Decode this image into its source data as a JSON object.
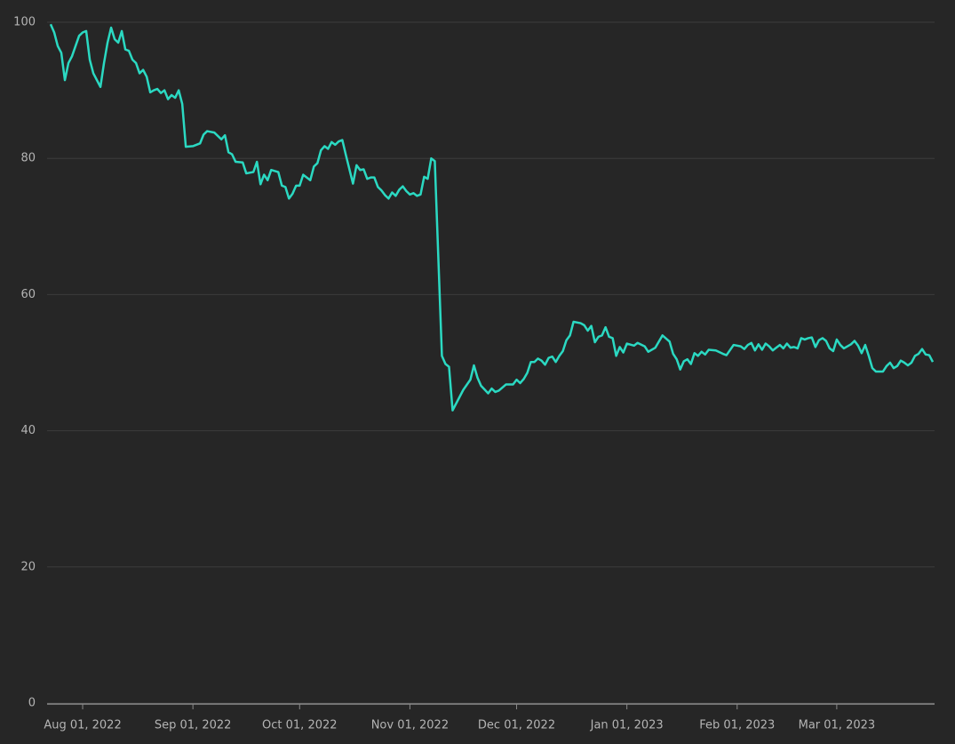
{
  "chart_data": {
    "type": "line",
    "x": [
      "2022-07-23",
      "2022-07-24",
      "2022-07-25",
      "2022-07-26",
      "2022-07-27",
      "2022-07-28",
      "2022-07-29",
      "2022-07-31",
      "2022-08-01",
      "2022-08-02",
      "2022-08-03",
      "2022-08-04",
      "2022-08-05",
      "2022-08-06",
      "2022-08-07",
      "2022-08-08",
      "2022-08-09",
      "2022-08-10",
      "2022-08-11",
      "2022-08-12",
      "2022-08-13",
      "2022-08-14",
      "2022-08-15",
      "2022-08-16",
      "2022-08-17",
      "2022-08-18",
      "2022-08-19",
      "2022-08-20",
      "2022-08-21",
      "2022-08-22",
      "2022-08-23",
      "2022-08-24",
      "2022-08-25",
      "2022-08-26",
      "2022-08-27",
      "2022-08-28",
      "2022-08-29",
      "2022-08-30",
      "2022-09-01",
      "2022-09-03",
      "2022-09-04",
      "2022-09-05",
      "2022-09-07",
      "2022-09-09",
      "2022-09-10",
      "2022-09-11",
      "2022-09-12",
      "2022-09-13",
      "2022-09-15",
      "2022-09-16",
      "2022-09-18",
      "2022-09-19",
      "2022-09-20",
      "2022-09-21",
      "2022-09-22",
      "2022-09-23",
      "2022-09-25",
      "2022-09-26",
      "2022-09-27",
      "2022-09-28",
      "2022-09-29",
      "2022-09-30",
      "2022-10-01",
      "2022-10-02",
      "2022-10-04",
      "2022-10-05",
      "2022-10-06",
      "2022-10-07",
      "2022-10-08",
      "2022-10-09",
      "2022-10-10",
      "2022-10-11",
      "2022-10-12",
      "2022-10-13",
      "2022-10-14",
      "2022-10-16",
      "2022-10-17",
      "2022-10-18",
      "2022-10-19",
      "2022-10-20",
      "2022-10-21",
      "2022-10-22",
      "2022-10-23",
      "2022-10-24",
      "2022-10-25",
      "2022-10-26",
      "2022-10-27",
      "2022-10-28",
      "2022-10-29",
      "2022-10-30",
      "2022-10-31",
      "2022-11-01",
      "2022-11-02",
      "2022-11-03",
      "2022-11-04",
      "2022-11-05",
      "2022-11-06",
      "2022-11-07",
      "2022-11-08",
      "2022-11-10",
      "2022-11-11",
      "2022-11-12",
      "2022-11-13",
      "2022-11-16",
      "2022-11-18",
      "2022-11-19",
      "2022-11-20",
      "2022-11-21",
      "2022-11-23",
      "2022-11-24",
      "2022-11-25",
      "2022-11-26",
      "2022-11-28",
      "2022-11-30",
      "2022-12-01",
      "2022-12-02",
      "2022-12-03",
      "2022-12-04",
      "2022-12-05",
      "2022-12-06",
      "2022-12-07",
      "2022-12-08",
      "2022-12-09",
      "2022-12-10",
      "2022-12-11",
      "2022-12-12",
      "2022-12-13",
      "2022-12-14",
      "2022-12-15",
      "2022-12-16",
      "2022-12-17",
      "2022-12-19",
      "2022-12-20",
      "2022-12-21",
      "2022-12-22",
      "2022-12-23",
      "2022-12-24",
      "2022-12-25",
      "2022-12-26",
      "2022-12-27",
      "2022-12-28",
      "2022-12-29",
      "2022-12-30",
      "2022-12-31",
      "2023-01-01",
      "2023-01-03",
      "2023-01-04",
      "2023-01-06",
      "2023-01-07",
      "2023-01-09",
      "2023-01-11",
      "2023-01-13",
      "2023-01-14",
      "2023-01-15",
      "2023-01-16",
      "2023-01-17",
      "2023-01-18",
      "2023-01-19",
      "2023-01-20",
      "2023-01-21",
      "2023-01-22",
      "2023-01-23",
      "2023-01-24",
      "2023-01-26",
      "2023-01-28",
      "2023-01-29",
      "2023-01-31",
      "2023-02-02",
      "2023-02-03",
      "2023-02-04",
      "2023-02-05",
      "2023-02-06",
      "2023-02-07",
      "2023-02-08",
      "2023-02-09",
      "2023-02-10",
      "2023-02-11",
      "2023-02-12",
      "2023-02-13",
      "2023-02-14",
      "2023-02-15",
      "2023-02-16",
      "2023-02-17",
      "2023-02-18",
      "2023-02-19",
      "2023-02-20",
      "2023-02-21",
      "2023-02-22",
      "2023-02-23",
      "2023-02-24",
      "2023-02-25",
      "2023-02-26",
      "2023-02-27",
      "2023-02-28",
      "2023-03-01",
      "2023-03-02",
      "2023-03-03",
      "2023-03-05",
      "2023-03-06",
      "2023-03-07",
      "2023-03-08",
      "2023-03-09",
      "2023-03-10",
      "2023-03-11",
      "2023-03-12",
      "2023-03-14",
      "2023-03-15",
      "2023-03-16",
      "2023-03-17",
      "2023-03-18",
      "2023-03-19",
      "2023-03-20",
      "2023-03-21",
      "2023-03-22",
      "2023-03-23",
      "2023-03-24",
      "2023-03-25",
      "2023-03-26",
      "2023-03-27",
      "2023-03-28"
    ],
    "series": [
      {
        "color": "#2bd9c2",
        "values": [
          99.7,
          98.5,
          96.5,
          95.5,
          91.5,
          94,
          95,
          98,
          98.5,
          98.7,
          94.5,
          92.5,
          91.5,
          90.5,
          94,
          97,
          99.2,
          97.5,
          97,
          98.7,
          96,
          95.8,
          94.5,
          94,
          92.5,
          93,
          92,
          89.7,
          90,
          90.2,
          89.6,
          90,
          88.7,
          89.3,
          88.9,
          90,
          88,
          81.7,
          81.8,
          82.2,
          83.5,
          84,
          83.8,
          82.8,
          83.4,
          80.9,
          80.6,
          79.5,
          79.4,
          77.8,
          78,
          79.5,
          76.2,
          77.6,
          76.8,
          78.3,
          78,
          76,
          75.8,
          74.1,
          74.8,
          76,
          76,
          77.6,
          76.8,
          78.8,
          79.3,
          81.2,
          81.8,
          81.4,
          82.4,
          82,
          82.5,
          82.7,
          80.5,
          76.3,
          79,
          78.3,
          78.4,
          77,
          77.2,
          77.2,
          75.8,
          75.3,
          74.6,
          74.1,
          75,
          74.5,
          75.4,
          75.9,
          75.2,
          74.7,
          74.9,
          74.5,
          74.7,
          77.3,
          77,
          80,
          79.6,
          51,
          49.8,
          49.4,
          43,
          46,
          47.5,
          49.6,
          47.8,
          46.6,
          45.5,
          46.2,
          45.7,
          45.9,
          46.8,
          46.8,
          47.5,
          47,
          47.6,
          48.5,
          50.1,
          50.1,
          50.6,
          50.3,
          49.7,
          50.7,
          50.9,
          50.1,
          51,
          51.7,
          53.3,
          54,
          56,
          55.8,
          55.5,
          54.7,
          55.4,
          53,
          53.8,
          54,
          55.2,
          53.8,
          53.6,
          51,
          52.3,
          51.5,
          52.8,
          52.5,
          52.9,
          52.4,
          51.6,
          52.2,
          54,
          53.1,
          51.3,
          50.5,
          49,
          50.2,
          50.5,
          49.8,
          51.4,
          51,
          51.6,
          51.2,
          51.9,
          51.8,
          51.3,
          51.1,
          52.6,
          52.4,
          52,
          52.6,
          52.9,
          51.8,
          52.7,
          51.9,
          52.8,
          52.4,
          51.8,
          52.2,
          52.6,
          52.1,
          52.8,
          52.2,
          52.3,
          52.1,
          53.6,
          53.4,
          53.6,
          53.7,
          52.3,
          53.3,
          53.6,
          53.2,
          52.1,
          51.7,
          53.4,
          52.6,
          52.1,
          52.7,
          53.2,
          52.5,
          51.4,
          52.6,
          51,
          49.2,
          48.7,
          48.7,
          49.5,
          50,
          49.2,
          49.5,
          50.3,
          50,
          49.6,
          50,
          51,
          51.3,
          52,
          51.2,
          51.1,
          50.1
        ]
      }
    ],
    "xlim": [
      "2022-07-23",
      "2023-03-28"
    ],
    "xticks": [
      {
        "value": "2022-08-01",
        "label": "Aug 01, 2022"
      },
      {
        "value": "2022-09-01",
        "label": "Sep 01, 2022"
      },
      {
        "value": "2022-10-01",
        "label": "Oct 01, 2022"
      },
      {
        "value": "2022-11-01",
        "label": "Nov 01, 2022"
      },
      {
        "value": "2022-12-01",
        "label": "Dec 01, 2022"
      },
      {
        "value": "2023-01-01",
        "label": "Jan 01, 2023"
      },
      {
        "value": "2023-02-01",
        "label": "Feb 01, 2023"
      },
      {
        "value": "2023-03-01",
        "label": "Mar 01, 2023"
      }
    ],
    "ylim": [
      0,
      100
    ],
    "yticks": [
      0,
      20,
      40,
      60,
      80,
      100
    ],
    "grid": true
  }
}
